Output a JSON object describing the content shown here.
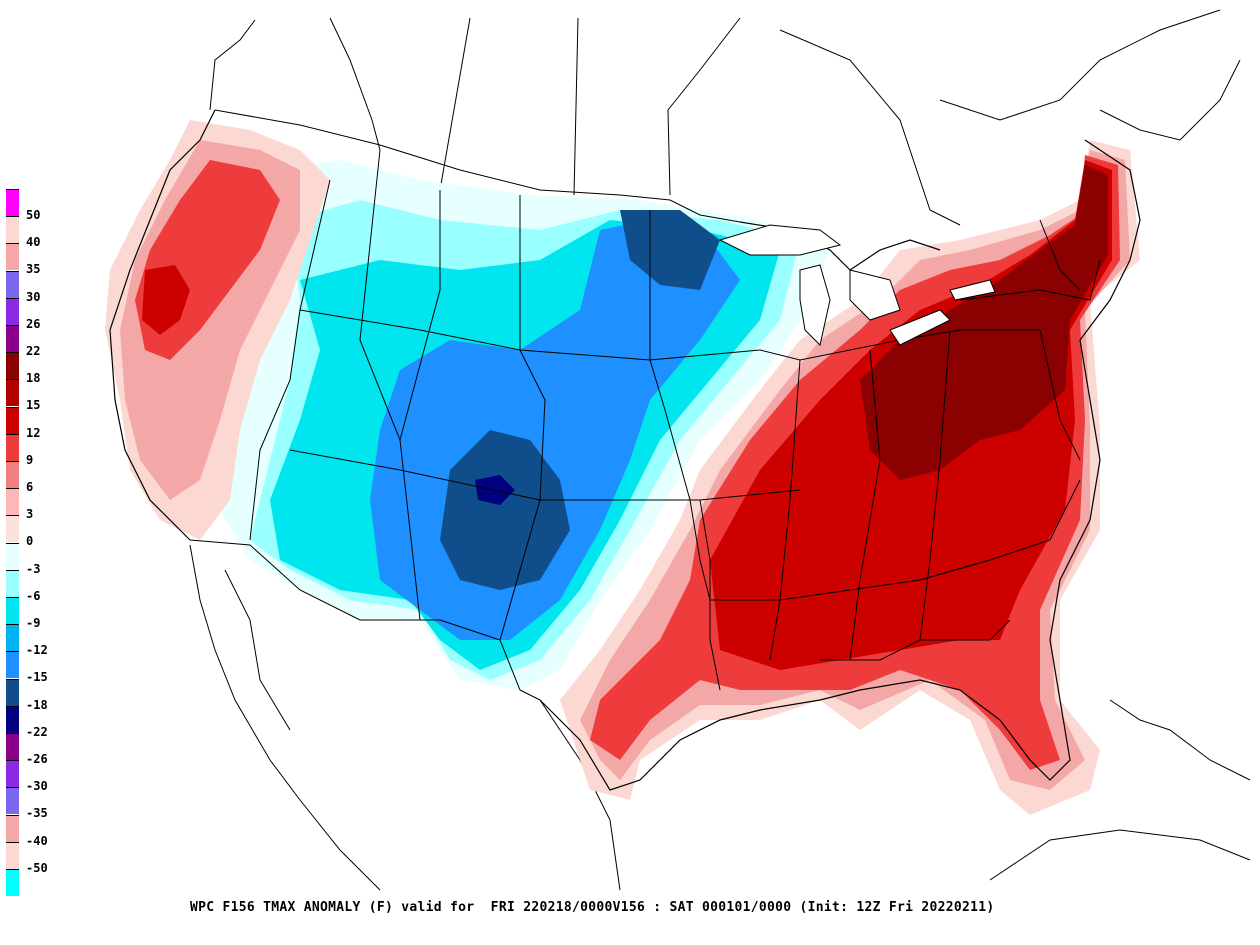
{
  "map": {
    "caption": "WPC F156 TMAX ANOMALY (F) valid for  FRI 220218/0000V156 : SAT 000101/0000 (Init: 12Z Fri 20220211)",
    "colors": {
      "warm_strong": "#8b0000",
      "warm_mid": "#cc0000",
      "warm_light": "#ee3b3b",
      "warm_pale": "#f4a7a7",
      "warm_faint": "#fbd8d2",
      "neutral": "#e6ffff",
      "cool_faint": "#99ffff",
      "cool_light": "#00e5ee",
      "cool_mid": "#1e90ff",
      "cool_strong": "#104e8b",
      "cool_extreme": "#000080",
      "outline": "#000000"
    }
  },
  "legend": {
    "entries": [
      {
        "label": "50",
        "color": "#ff00ff"
      },
      {
        "label": "40",
        "color": "#fbd8d2"
      },
      {
        "label": "35",
        "color": "#f4a7a7"
      },
      {
        "label": "30",
        "color": "#7a67ee"
      },
      {
        "label": "26",
        "color": "#8a2be2"
      },
      {
        "label": "22",
        "color": "#8b008b"
      },
      {
        "label": "18",
        "color": "#8b0000"
      },
      {
        "label": "15",
        "color": "#b00000"
      },
      {
        "label": "12",
        "color": "#cd0000"
      },
      {
        "label": "9",
        "color": "#ee3b3b"
      },
      {
        "label": "6",
        "color": "#f08080"
      },
      {
        "label": "3",
        "color": "#ffb6b6"
      },
      {
        "label": "0",
        "color": "#fbe0dc"
      },
      {
        "label": "-3",
        "color": "#e6ffff"
      },
      {
        "label": "-6",
        "color": "#99ffff"
      },
      {
        "label": "-9",
        "color": "#00e5ee"
      },
      {
        "label": "-12",
        "color": "#00b2ee"
      },
      {
        "label": "-15",
        "color": "#1e90ff"
      },
      {
        "label": "-18",
        "color": "#104e8b"
      },
      {
        "label": "-22",
        "color": "#000080"
      },
      {
        "label": "-26",
        "color": "#8b008b"
      },
      {
        "label": "-30",
        "color": "#8a2be2"
      },
      {
        "label": "-35",
        "color": "#7a67ee"
      },
      {
        "label": "-40",
        "color": "#f4a7a7"
      },
      {
        "label": "-50",
        "color": "#fbd8d2"
      },
      {
        "label": "",
        "color": "#00ffff"
      }
    ]
  }
}
